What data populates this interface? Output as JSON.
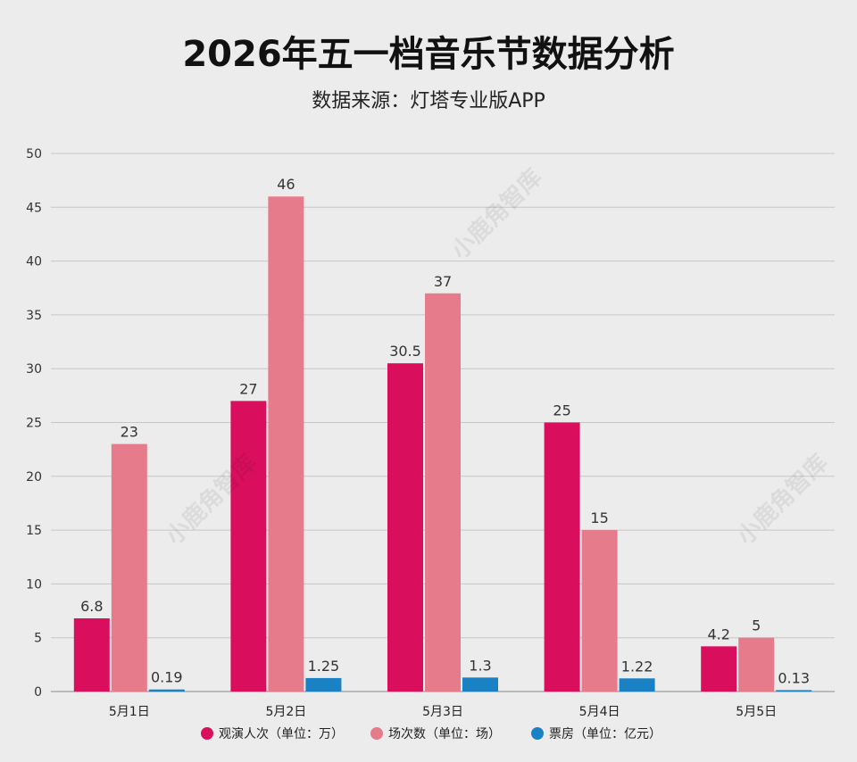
{
  "chart_data": {
    "type": "bar",
    "title": "2026年五一档音乐节数据分析",
    "subtitle": "数据来源：灯塔专业版APP",
    "categories": [
      "5月1日",
      "5月2日",
      "5月3日",
      "5月4日",
      "5月5日"
    ],
    "series": [
      {
        "name": "观演人次（单位：万）",
        "color": "#d90f5e",
        "values": [
          6.8,
          27,
          30.5,
          25,
          4.2
        ],
        "labels": [
          "6.8",
          "27",
          "30.5",
          "25",
          "4.2"
        ]
      },
      {
        "name": "场次数（单位：场）",
        "color": "#e57b8b",
        "values": [
          23,
          46,
          37,
          15,
          5
        ],
        "labels": [
          "23",
          "46",
          "37",
          "15",
          "5"
        ]
      },
      {
        "name": "票房（单位：亿元）",
        "color": "#1a82c4",
        "values": [
          0.19,
          1.25,
          1.3,
          1.22,
          0.13
        ],
        "labels": [
          "0.19",
          "1.25",
          "1.3",
          "1.22",
          "0.13"
        ]
      }
    ],
    "ylim": [
      0,
      50
    ],
    "yticks": [
      0,
      5,
      10,
      15,
      20,
      25,
      30,
      35,
      40,
      45,
      50
    ],
    "grid": true,
    "legend": "bottom"
  },
  "watermark": "小鹿角智库"
}
